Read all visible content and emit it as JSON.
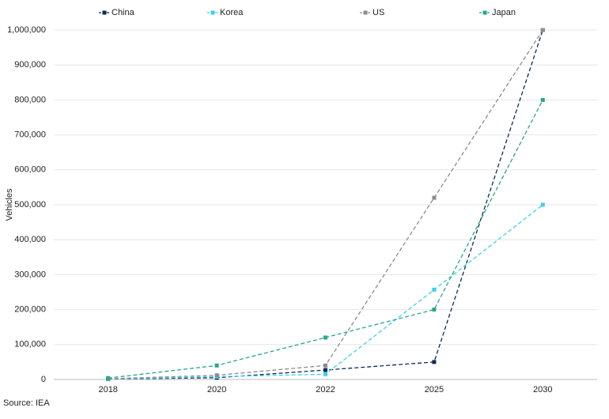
{
  "chart_data": {
    "type": "line",
    "categories": [
      "2018",
      "2020",
      "2022",
      "2025",
      "2030"
    ],
    "series": [
      {
        "name": "China",
        "color": "#0c2a54",
        "values": [
          1000,
          5000,
          27000,
          50000,
          1000000
        ]
      },
      {
        "name": "Korea",
        "color": "#3dd0f0",
        "values": [
          1000,
          8000,
          15000,
          257000,
          500000
        ]
      },
      {
        "name": "US",
        "color": "#8c8c8c",
        "values": [
          2000,
          12000,
          40000,
          520000,
          1000000
        ]
      },
      {
        "name": "Japan",
        "color": "#2aa58a",
        "values": [
          4000,
          40000,
          120000,
          200000,
          800000
        ]
      }
    ],
    "y_label": "Vehicles",
    "source": "Source: IEA",
    "ylim": [
      0,
      1000000
    ],
    "yticks": [
      0,
      {
        "value": 100000,
        "label": "100,000"
      },
      {
        "value": 200000,
        "label": "200,000"
      },
      {
        "value": 300000,
        "label": "300,000"
      },
      {
        "value": 400000,
        "label": "400,000"
      },
      {
        "value": 500000,
        "label": "500,000"
      },
      {
        "value": 600000,
        "label": "600,000"
      },
      {
        "value": 700000,
        "label": "700,000"
      },
      {
        "value": 800000,
        "label": "800,000"
      },
      {
        "value": 900000,
        "label": "900,000"
      },
      {
        "value": 1000000,
        "label": "1,000,000"
      }
    ],
    "grid": true,
    "legend": "top"
  }
}
